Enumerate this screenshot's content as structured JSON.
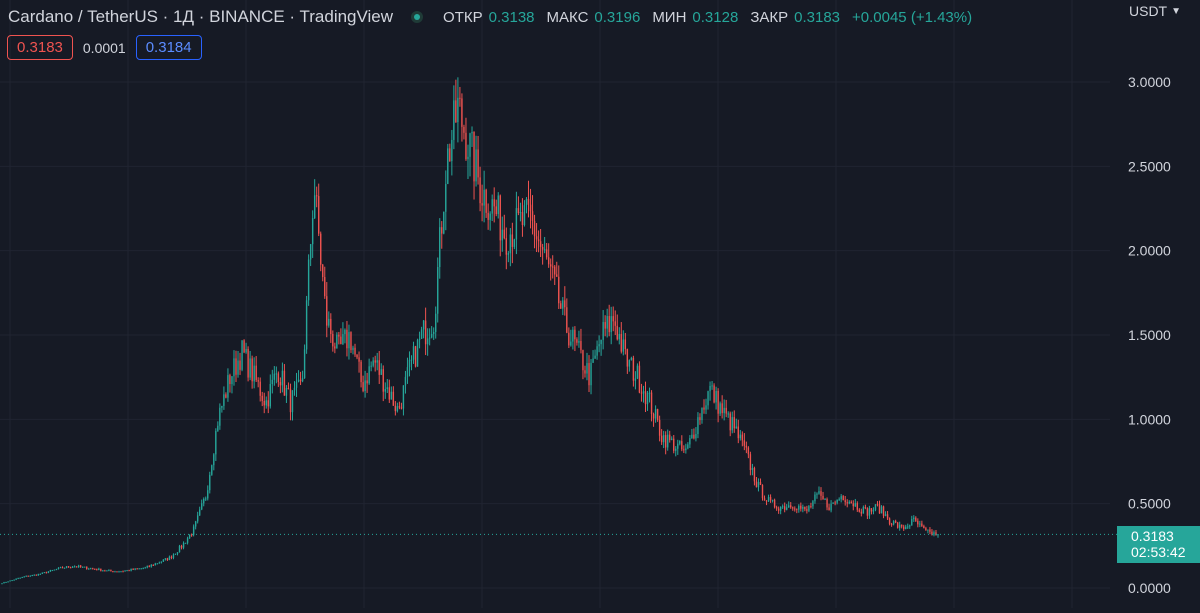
{
  "header": {
    "title": "Cardano / TetherUS · 1Д · BINANCE · TradingView",
    "ohlc": [
      {
        "label": "ОТКР",
        "value": "0.3138"
      },
      {
        "label": "МАКС",
        "value": "0.3196"
      },
      {
        "label": "МИН",
        "value": "0.3128"
      },
      {
        "label": "ЗАКР",
        "value": "0.3183"
      }
    ],
    "change": "+0.0045 (+1.43%)"
  },
  "trade": {
    "sell_price": "0.3183",
    "spread": "0.0001",
    "buy_price": "0.3184"
  },
  "axis": {
    "currency": "USDT"
  },
  "price_tag": {
    "price": "0.3183",
    "countdown": "02:53:42"
  },
  "colors": {
    "background": "#161a25",
    "up": "#26a69a",
    "down": "#ef5350",
    "grid": "#202431",
    "text": "#d1d4dc"
  },
  "chart_data": {
    "type": "candlestick",
    "yticks": [
      "0.0000",
      "0.5000",
      "1.0000",
      "1.5000",
      "2.0000",
      "2.5000",
      "3.0000"
    ],
    "ylim": [
      -0.07,
      3.15
    ],
    "last_close": 0.3183,
    "grid": true,
    "series": [
      {
        "values": [
          0.03,
          0.05,
          0.07,
          0.08,
          0.1,
          0.12,
          0.13,
          0.12,
          0.11,
          0.1,
          0.1,
          0.11,
          0.12,
          0.15,
          0.18,
          0.25,
          0.35,
          0.55,
          1.0,
          1.25,
          1.4,
          1.25,
          1.1,
          1.3,
          1.1,
          1.2,
          2.4,
          1.6,
          1.4,
          1.5,
          1.2,
          1.35,
          1.2,
          1.05,
          1.3,
          1.5,
          1.6,
          2.5,
          2.85,
          2.6,
          2.35,
          2.25,
          2.1,
          2.15,
          2.2,
          2.0,
          1.8,
          1.55,
          1.4,
          1.25,
          1.5,
          1.6,
          1.35,
          1.25,
          1.1,
          0.9,
          0.85,
          0.8,
          1.0,
          1.18,
          1.05,
          0.95,
          0.8,
          0.6,
          0.5,
          0.48,
          0.5,
          0.45,
          0.55,
          0.48,
          0.55,
          0.5,
          0.45,
          0.48,
          0.4,
          0.35,
          0.4,
          0.33,
          0.3183
        ]
      }
    ]
  }
}
